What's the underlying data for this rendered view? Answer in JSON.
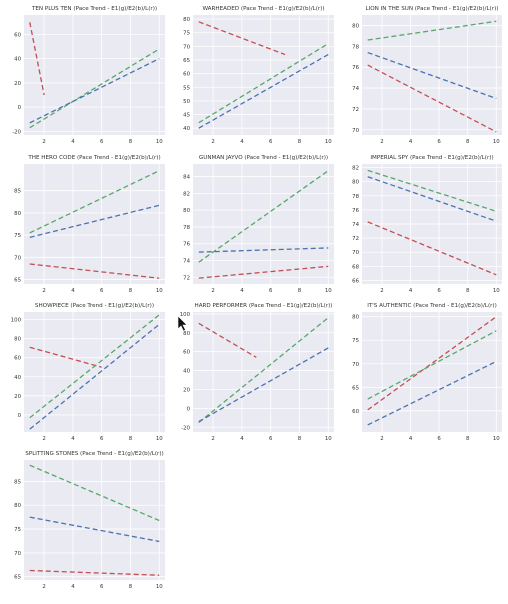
{
  "colors": {
    "background": "#ffffff",
    "plot_bg": "#eaeaf2",
    "grid": "#ffffff",
    "text": "#333333",
    "red": "#c44e52",
    "green": "#55a868",
    "blue": "#4c72b0"
  },
  "chart_data": [
    {
      "type": "line",
      "title": "TEN PLUS TEN (Pace Trend - E1(g)/E2(b)/L(r))",
      "xticks": [
        2,
        4,
        6,
        8,
        10
      ],
      "yticks": [
        -20,
        0,
        20,
        40,
        60
      ],
      "xlim": [
        0.6,
        10.4
      ],
      "ylim": [
        -23,
        76
      ],
      "series": [
        {
          "color": "red",
          "x": [
            1,
            2
          ],
          "y": [
            70,
            10
          ]
        },
        {
          "color": "green",
          "x": [
            1,
            10
          ],
          "y": [
            -17,
            48
          ]
        },
        {
          "color": "blue",
          "x": [
            1,
            10
          ],
          "y": [
            -13,
            40
          ]
        }
      ]
    },
    {
      "type": "line",
      "title": "WARHEADED (Pace Trend - E1(g)/E2(b)/L(r))",
      "xticks": [
        2,
        4,
        6,
        8,
        10
      ],
      "yticks": [
        40,
        45,
        50,
        55,
        60,
        65,
        70,
        75,
        80
      ],
      "xlim": [
        0.6,
        10.4
      ],
      "ylim": [
        37.5,
        81.5
      ],
      "series": [
        {
          "color": "red",
          "x": [
            1,
            7
          ],
          "y": [
            79,
            67
          ]
        },
        {
          "color": "green",
          "x": [
            1,
            10
          ],
          "y": [
            42,
            71
          ]
        },
        {
          "color": "blue",
          "x": [
            1,
            10
          ],
          "y": [
            40,
            67
          ]
        }
      ]
    },
    {
      "type": "line",
      "title": "LION IN THE SUN (Pace Trend - E1(g)/E2(b)/L(r))",
      "xticks": [
        2,
        4,
        6,
        8,
        10
      ],
      "yticks": [
        70,
        72,
        74,
        76,
        78,
        80
      ],
      "xlim": [
        0.6,
        10.4
      ],
      "ylim": [
        69.5,
        81
      ],
      "series": [
        {
          "color": "red",
          "x": [
            1,
            10
          ],
          "y": [
            76.2,
            69.8
          ]
        },
        {
          "color": "green",
          "x": [
            1,
            10
          ],
          "y": [
            78.6,
            80.4
          ]
        },
        {
          "color": "blue",
          "x": [
            1,
            10
          ],
          "y": [
            77.4,
            73
          ]
        }
      ]
    },
    {
      "type": "line",
      "title": "THE HERO CODE (Pace Trend - E1(g)/E2(b)/L(r))",
      "xticks": [
        2,
        4,
        6,
        8,
        10
      ],
      "yticks": [
        65,
        70,
        75,
        80,
        85
      ],
      "xlim": [
        0.6,
        10.4
      ],
      "ylim": [
        64,
        91
      ],
      "series": [
        {
          "color": "red",
          "x": [
            1,
            10
          ],
          "y": [
            68.5,
            65.3
          ]
        },
        {
          "color": "green",
          "x": [
            1,
            10
          ],
          "y": [
            75.5,
            89.5
          ]
        },
        {
          "color": "blue",
          "x": [
            1,
            10
          ],
          "y": [
            74.5,
            81.7
          ]
        }
      ]
    },
    {
      "type": "line",
      "title": "GUNMAN JAYVO (Pace Trend - E1(g)/E2(b)/L(r))",
      "xticks": [
        2,
        4,
        6,
        8,
        10
      ],
      "yticks": [
        72,
        74,
        76,
        78,
        80,
        82,
        84
      ],
      "xlim": [
        0.6,
        10.4
      ],
      "ylim": [
        71.2,
        85.5
      ],
      "series": [
        {
          "color": "red",
          "x": [
            1,
            10
          ],
          "y": [
            71.9,
            73.3
          ]
        },
        {
          "color": "green",
          "x": [
            1,
            10
          ],
          "y": [
            73.8,
            84.7
          ]
        },
        {
          "color": "blue",
          "x": [
            1,
            10
          ],
          "y": [
            75.0,
            75.5
          ]
        }
      ]
    },
    {
      "type": "line",
      "title": "IMPERIAL SPY (Pace Trend - E1(g)/E2(b)/L(r))",
      "xticks": [
        2,
        4,
        6,
        8,
        10
      ],
      "yticks": [
        66,
        68,
        70,
        72,
        74,
        76,
        78,
        80,
        82
      ],
      "xlim": [
        0.6,
        10.4
      ],
      "ylim": [
        65.5,
        82.5
      ],
      "series": [
        {
          "color": "red",
          "x": [
            1,
            10
          ],
          "y": [
            74.3,
            66.8
          ]
        },
        {
          "color": "green",
          "x": [
            1,
            10
          ],
          "y": [
            81.6,
            75.8
          ]
        },
        {
          "color": "blue",
          "x": [
            1,
            10
          ],
          "y": [
            80.7,
            74.4
          ]
        }
      ]
    },
    {
      "type": "line",
      "title": "SHOWPIECE (Pace Trend - E1(g)/E2(b)/L(r))",
      "xticks": [
        2,
        4,
        6,
        8,
        10
      ],
      "yticks": [
        0,
        20,
        40,
        60,
        80,
        100
      ],
      "xlim": [
        0.6,
        10.4
      ],
      "ylim": [
        -18,
        108
      ],
      "series": [
        {
          "color": "red",
          "x": [
            1,
            6
          ],
          "y": [
            71,
            50
          ]
        },
        {
          "color": "green",
          "x": [
            1,
            10
          ],
          "y": [
            -3,
            105
          ]
        },
        {
          "color": "blue",
          "x": [
            1,
            10
          ],
          "y": [
            -15,
            95
          ]
        }
      ]
    },
    {
      "type": "line",
      "title": "HARD PERFORMER (Pace Trend - E1(g)/E2(b)/L(r))",
      "xticks": [
        2,
        4,
        6,
        8,
        10
      ],
      "yticks": [
        -20,
        0,
        20,
        40,
        60,
        80,
        100
      ],
      "xlim": [
        0.6,
        10.4
      ],
      "ylim": [
        -25,
        102
      ],
      "series": [
        {
          "color": "red",
          "x": [
            1,
            5
          ],
          "y": [
            90,
            54
          ]
        },
        {
          "color": "green",
          "x": [
            1,
            10
          ],
          "y": [
            -15,
            96
          ]
        },
        {
          "color": "blue",
          "x": [
            1,
            10
          ],
          "y": [
            -14,
            64
          ]
        }
      ]
    },
    {
      "type": "line",
      "title": "IT'S AUTHENTIC (Pace Trend - E1(g)/E2(b)/L(r))",
      "xticks": [
        2,
        4,
        6,
        8,
        10
      ],
      "yticks": [
        60,
        65,
        70,
        75,
        80
      ],
      "xlim": [
        0.6,
        10.4
      ],
      "ylim": [
        55.5,
        81
      ],
      "series": [
        {
          "color": "red",
          "x": [
            1,
            10
          ],
          "y": [
            60.2,
            80
          ]
        },
        {
          "color": "green",
          "x": [
            1,
            10
          ],
          "y": [
            62.5,
            77
          ]
        },
        {
          "color": "blue",
          "x": [
            1,
            10
          ],
          "y": [
            57,
            70.5
          ]
        }
      ]
    },
    {
      "type": "line",
      "title": "SPLITTING STONES (Pace Trend - E1(g)/E2(b)/L(r))",
      "xticks": [
        2,
        4,
        6,
        8,
        10
      ],
      "yticks": [
        65,
        70,
        75,
        80,
        85
      ],
      "xlim": [
        0.6,
        10.4
      ],
      "ylim": [
        64.3,
        89.5
      ],
      "series": [
        {
          "color": "red",
          "x": [
            1,
            10
          ],
          "y": [
            66.3,
            65.3
          ]
        },
        {
          "color": "green",
          "x": [
            1,
            10
          ],
          "y": [
            88.4,
            76.8
          ]
        },
        {
          "color": "blue",
          "x": [
            1,
            10
          ],
          "y": [
            77.5,
            72.4
          ]
        }
      ]
    }
  ]
}
